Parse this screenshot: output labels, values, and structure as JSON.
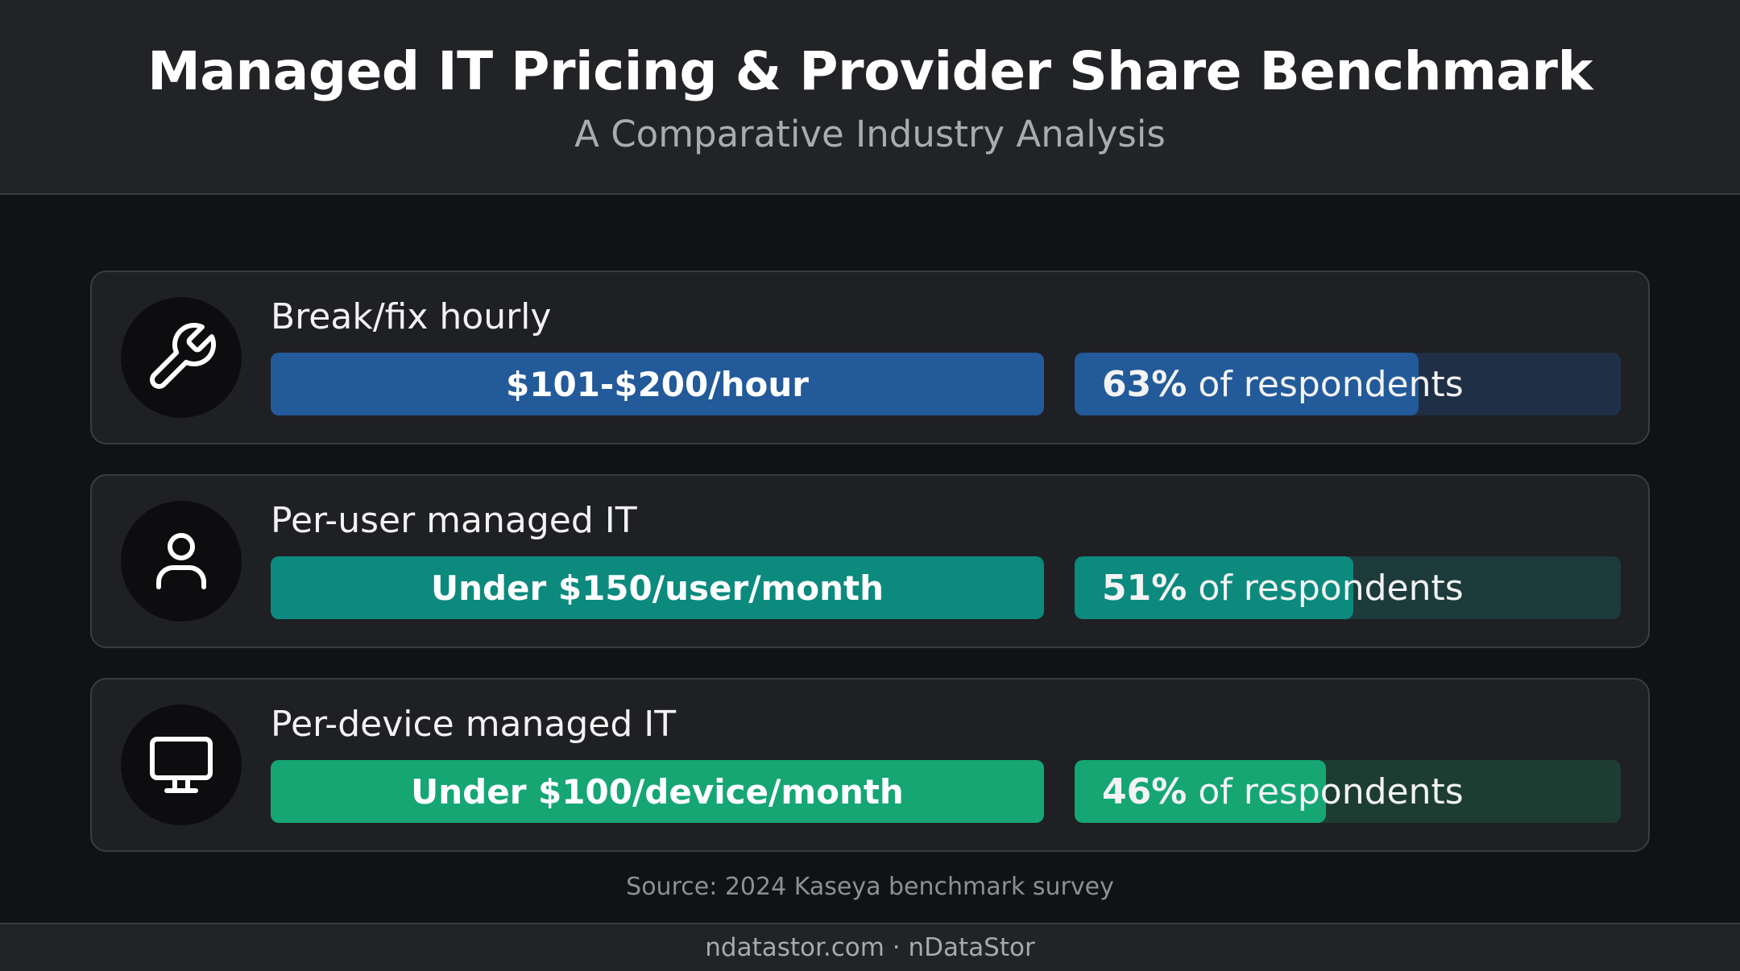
{
  "header": {
    "title": "Managed IT Pricing & Provider Share Benchmark",
    "subtitle": "A Comparative Industry Analysis"
  },
  "colors": {
    "blue": "#225a9a",
    "blue_track": "#1f2f45",
    "teal": "#0c8a7e",
    "teal_track": "#1c3b3a",
    "green": "#16a673",
    "green_track": "#1d3d32"
  },
  "chart_data": {
    "type": "bar",
    "title": "Managed IT Pricing & Provider Share Benchmark",
    "subtitle": "A Comparative Industry Analysis",
    "categories": [
      "Break/fix hourly",
      "Per-user managed IT",
      "Per-device managed IT"
    ],
    "price_labels": [
      "$101-$200/hour",
      "Under $150/user/month",
      "Under $100/device/month"
    ],
    "values": [
      63,
      51,
      46
    ],
    "value_labels": [
      "63%",
      "51%",
      "46%"
    ],
    "value_suffix": "of respondents",
    "ylim": [
      0,
      100
    ],
    "icons": [
      "wrench-icon",
      "user-icon",
      "monitor-icon"
    ]
  },
  "source": "Source: 2024 Kaseya benchmark survey",
  "footer": "ndatastor.com · nDataStor"
}
